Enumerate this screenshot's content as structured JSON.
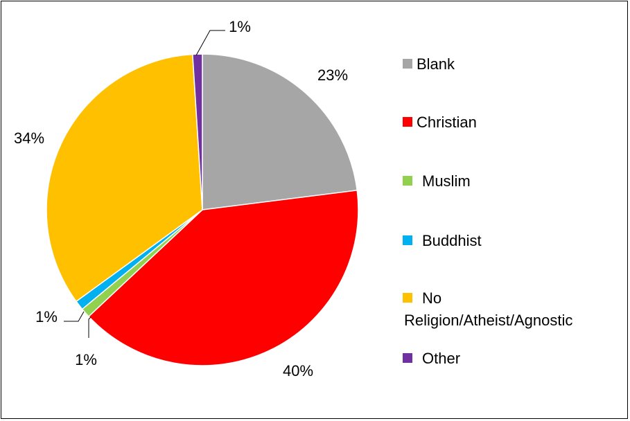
{
  "chart_data": {
    "type": "pie",
    "title": "",
    "slices": [
      {
        "label": "Blank",
        "value": 23,
        "value_label": "23%",
        "color": "#a6a6a6"
      },
      {
        "label": "Christian",
        "value": 40,
        "value_label": "40%",
        "color": "#ff0000"
      },
      {
        "label": "Muslim",
        "value": 1,
        "value_label": "1%",
        "color": "#92d050"
      },
      {
        "label": "Buddhist",
        "value": 1,
        "value_label": "1%",
        "color": "#00b0f0"
      },
      {
        "label": "No Religion/Atheist/Agnostic",
        "value": 34,
        "value_label": "34%",
        "color": "#ffc000"
      },
      {
        "label": "Other",
        "value": 1,
        "value_label": "1%",
        "color": "#7030a0"
      }
    ],
    "legend_position": "right",
    "start_angle": "top",
    "direction": "clockwise"
  }
}
